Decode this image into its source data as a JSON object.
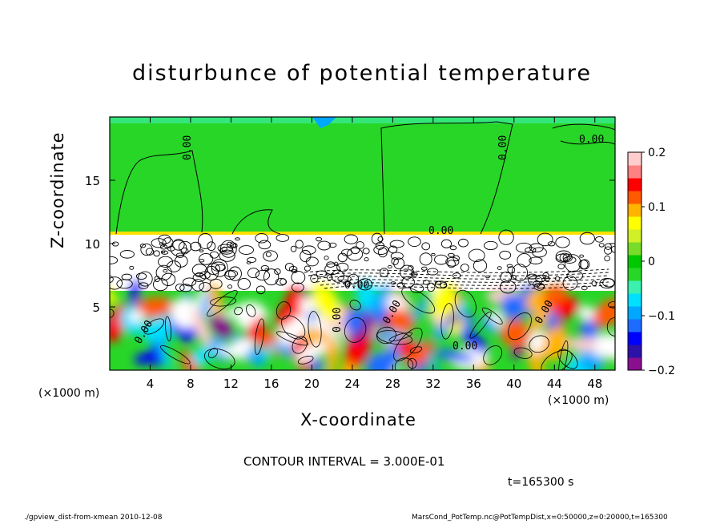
{
  "chart_data": {
    "type": "heatmap",
    "title": "disturbunce of potential temperature",
    "xlabel": "X-coordinate",
    "ylabel": "Z-coordinate",
    "x_unit_label": "(×1000 m)",
    "xlim": [
      0,
      50
    ],
    "ylim": [
      0,
      20
    ],
    "xticks": [
      4,
      8,
      12,
      16,
      20,
      24,
      28,
      32,
      36,
      40,
      44,
      48
    ],
    "yticks": [
      5,
      10,
      15
    ],
    "colorbar": {
      "range": [
        -0.2,
        0.2
      ],
      "ticks": [
        "0.2",
        "0.1",
        "0",
        "−0.1",
        "−0.2"
      ],
      "tick_values": [
        0.2,
        0.1,
        0,
        -0.1,
        -0.2
      ],
      "colors": [
        "#8a0f8f",
        "#2c12a8",
        "#0000ff",
        "#1e6cff",
        "#00a8ff",
        "#00e0ff",
        "#3cf0b0",
        "#28d628",
        "#00c800",
        "#78dc28",
        "#d2f028",
        "#ffff00",
        "#ffb400",
        "#ff5a00",
        "#ff0000",
        "#ff8282",
        "#ffcdcd"
      ]
    },
    "contour_labels": [
      "0.00"
    ],
    "contour_interval": "CONTOUR INTERVAL = 3.000E-01",
    "time": "t=165300 s"
  },
  "footer": {
    "left": "./gpview_dist-from-xmean  2010-12-08",
    "right": "MarsCond_PotTemp.nc@PotTempDist,x=0:50000,z=0:20000,t=165300"
  },
  "colors": {
    "background_upper": "#28d628",
    "tropopause_band": "#ffe000"
  }
}
